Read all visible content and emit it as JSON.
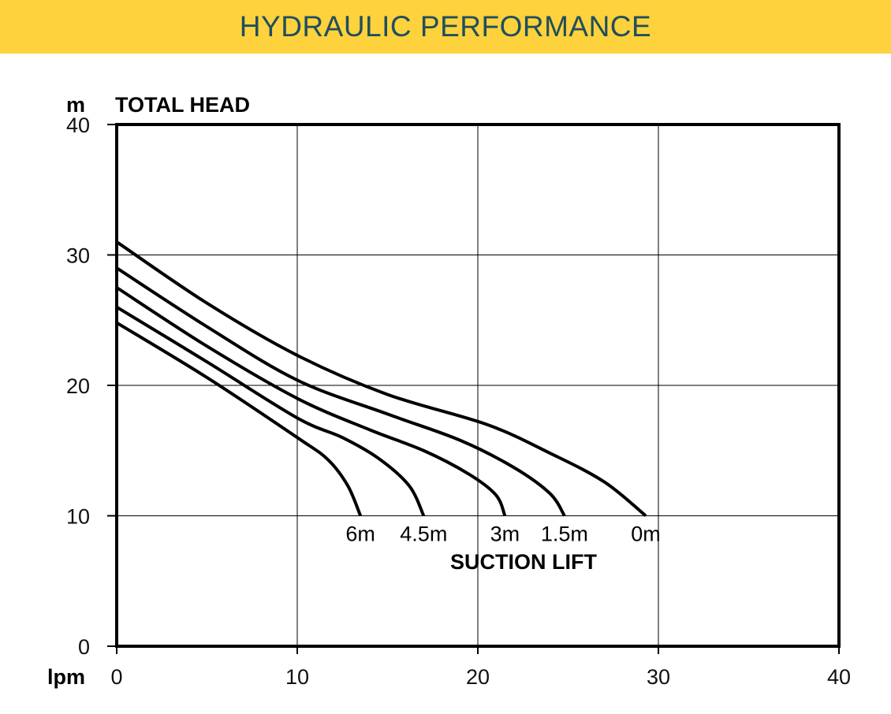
{
  "banner": {
    "title": "HYDRAULIC PERFORMANCE",
    "background": "#fdd23c",
    "text_color": "#1f4e5e"
  },
  "chart_data": {
    "type": "line",
    "title": "HYDRAULIC PERFORMANCE",
    "ylabel": "TOTAL HEAD",
    "y_unit": "m",
    "x_unit": "lpm",
    "xlim": [
      0,
      40
    ],
    "ylim": [
      0,
      40
    ],
    "x_ticks": [
      0,
      10,
      20,
      30,
      40
    ],
    "y_ticks": [
      0,
      10,
      20,
      30,
      40
    ],
    "grid": true,
    "legend_title": "SUCTION LIFT",
    "series": [
      {
        "name": "0m",
        "points": [
          [
            0,
            31
          ],
          [
            5,
            26.3
          ],
          [
            10,
            22.3
          ],
          [
            15,
            19.3
          ],
          [
            20.5,
            17
          ],
          [
            24,
            14.8
          ],
          [
            27,
            12.6
          ],
          [
            29.3,
            10
          ]
        ]
      },
      {
        "name": "1.5m",
        "points": [
          [
            0,
            29
          ],
          [
            5,
            24.5
          ],
          [
            10,
            20.4
          ],
          [
            15,
            17.8
          ],
          [
            19,
            15.8
          ],
          [
            22,
            13.7
          ],
          [
            24,
            11.7
          ],
          [
            24.8,
            10
          ]
        ]
      },
      {
        "name": "3m",
        "points": [
          [
            0,
            27.5
          ],
          [
            5,
            23
          ],
          [
            10,
            19
          ],
          [
            14,
            16.6
          ],
          [
            17,
            15
          ],
          [
            19.5,
            13.2
          ],
          [
            21,
            11.6
          ],
          [
            21.5,
            10
          ]
        ]
      },
      {
        "name": "4.5m",
        "points": [
          [
            0,
            26
          ],
          [
            5,
            21.8
          ],
          [
            10,
            17.5
          ],
          [
            12.5,
            16
          ],
          [
            14.5,
            14.4
          ],
          [
            16.2,
            12.3
          ],
          [
            17,
            10
          ]
        ]
      },
      {
        "name": "6m",
        "points": [
          [
            0,
            24.8
          ],
          [
            5,
            20.6
          ],
          [
            10,
            16
          ],
          [
            11.7,
            14.3
          ],
          [
            12.8,
            12.3
          ],
          [
            13.5,
            10
          ]
        ]
      }
    ]
  }
}
